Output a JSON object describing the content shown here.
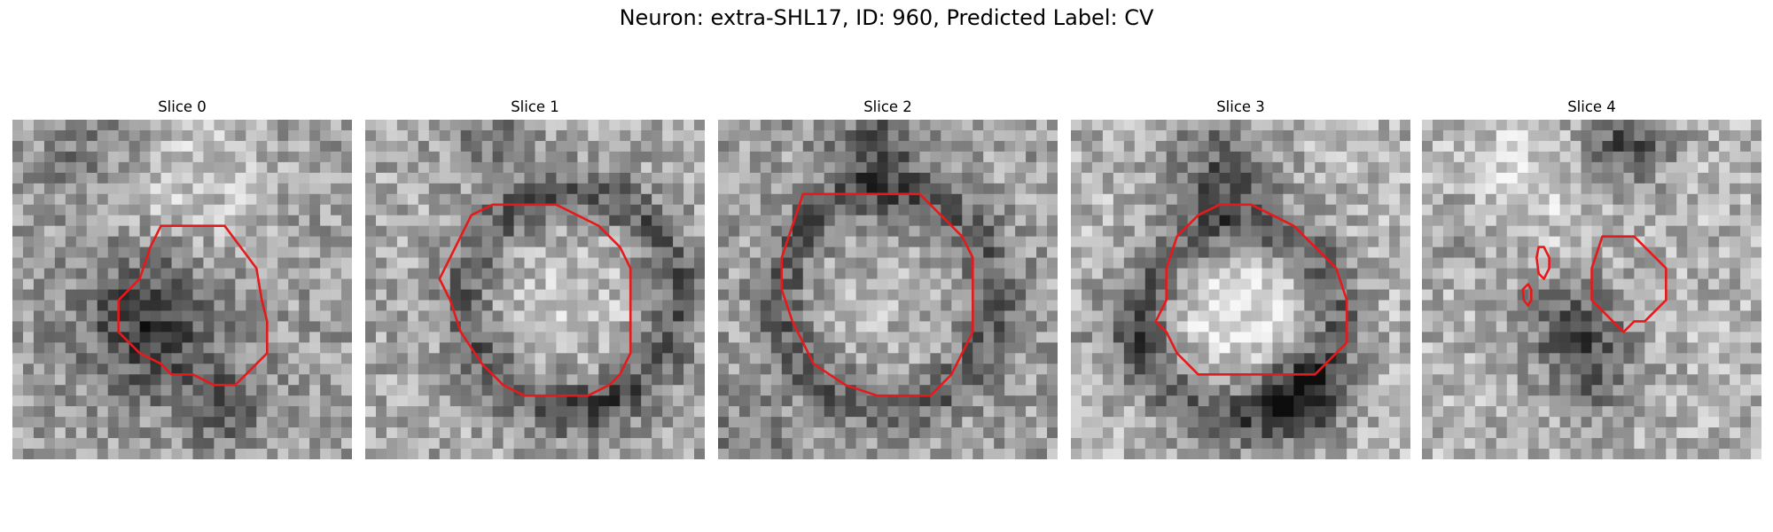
{
  "figure": {
    "title": "Neuron: extra-SHL17, ID: 960, Predicted Label: CV",
    "contour_color": "#e41a1c"
  },
  "panels": [
    {
      "title": "Slice 0"
    },
    {
      "title": "Slice 1"
    },
    {
      "title": "Slice 2"
    },
    {
      "title": "Slice 3"
    },
    {
      "title": "Slice 4"
    }
  ]
}
